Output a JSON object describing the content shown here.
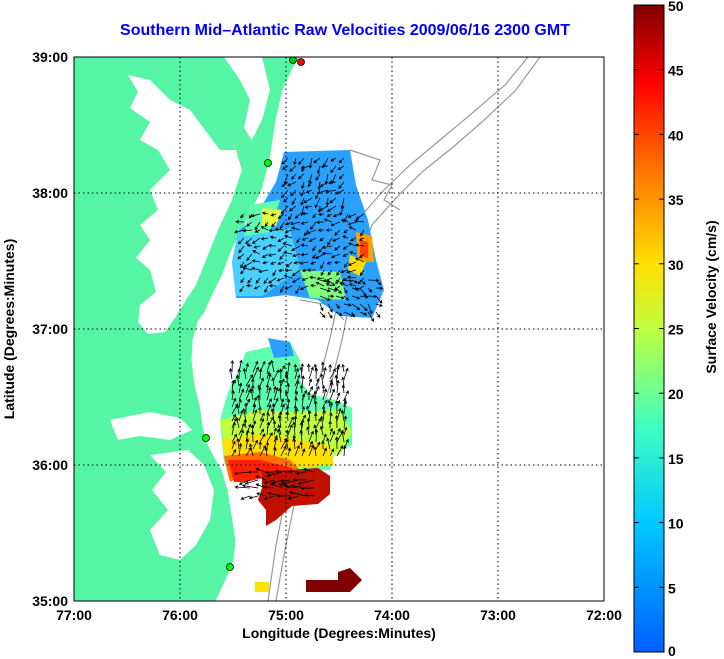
{
  "title": "Southern Mid–Atlantic Raw Velocities 2009/06/16 2300 GMT",
  "map": {
    "xlabel": "Longitude (Degrees:Minutes)",
    "ylabel": "Latitude (Degrees:Minutes)",
    "xticks": [
      "77:00",
      "76:00",
      "75:00",
      "74:00",
      "73:00",
      "72:00"
    ],
    "yticks": [
      "39:00",
      "38:00",
      "37:00",
      "36:00",
      "35:00"
    ],
    "colors": {
      "land": "#55f5a5",
      "frame": "#000000",
      "title": "#0000ff"
    }
  },
  "colorbar": {
    "label": "Surface Velocity (cm/s)",
    "ticks": [
      "50",
      "45",
      "40",
      "35",
      "30",
      "25",
      "20",
      "15",
      "10",
      "5",
      "0"
    ],
    "range": [
      0,
      50
    ],
    "colormap": "jet"
  }
}
